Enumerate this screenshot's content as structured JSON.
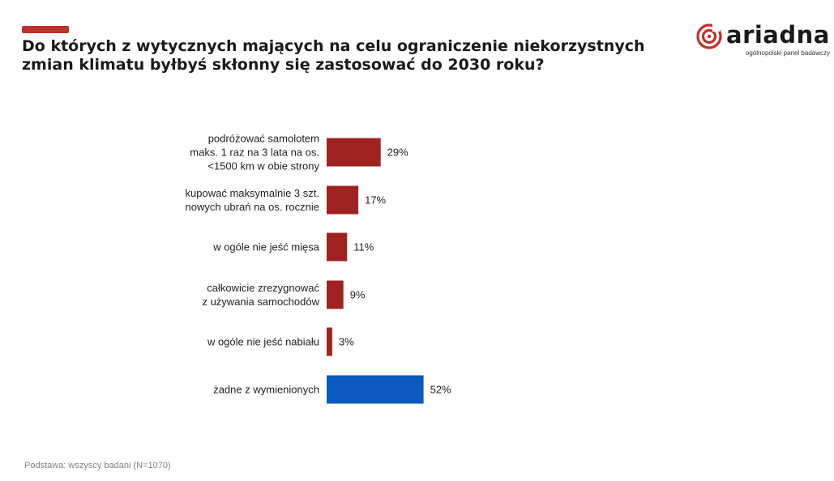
{
  "header": {
    "title": "Do których z wytycznych mających na celu ograniczenie niekorzystnych zmian klimatu byłbyś skłonny się zastosować do 2030 roku?"
  },
  "logo": {
    "wordmark": "ariadna",
    "tagline": "ogólnopolski panel badawczy",
    "icon": "ariadna-spiral-icon"
  },
  "colors": {
    "accent": "#c0302a",
    "bar": "#9e2320",
    "bar_highlight": "#0a5bbd"
  },
  "chart_data": {
    "type": "bar",
    "orientation": "horizontal",
    "categories": [
      "podróżować samolotem maks. 1 raz na 3 lata na os. <1500 km w obie strony",
      "kupować maksymalnie 3 szt. nowych ubrań na os. rocznie",
      "w ogóle nie jeść mięsa",
      "całkowicie zrezygnować z używania samochodów",
      "w ogóle nie jeść nabiału",
      "żadne z wymienionych"
    ],
    "values": [
      29,
      17,
      11,
      9,
      3,
      52
    ],
    "value_labels": [
      "29%",
      "17%",
      "11%",
      "9%",
      "3%",
      "52%"
    ],
    "label_lines": [
      [
        "podróżować samolotem",
        "maks. 1 raz na 3 lata na os.",
        "<1500 km w obie strony"
      ],
      [
        "kupować maksymalnie 3 szt.",
        "nowych ubrań na os. rocznie"
      ],
      [
        "w ogóle nie jeść mięsa"
      ],
      [
        "całkowicie zrezygnować",
        "z używania samochodów"
      ],
      [
        "w ogóle nie jeść nabiału"
      ],
      [
        "żadne z wymienionych"
      ]
    ],
    "highlight_index": 5,
    "unit": "%",
    "xlim": [
      0,
      100
    ],
    "grid": false,
    "legend": "none"
  },
  "footnote": "Podstawa: wszyscy badani (N=1070)"
}
